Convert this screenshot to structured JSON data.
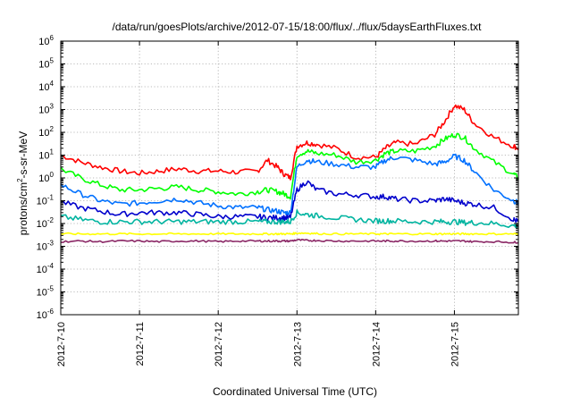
{
  "chart_data": {
    "type": "line",
    "title": "/data/run/goesPlots/archive/2012-07-15/18:00/flux/../flux/5daysEarthFluxes.txt",
    "xlabel": "Coordinated Universal Time (UTC)",
    "ylabel_parts": [
      "protons/cm",
      "2",
      "-s-sr-MeV"
    ],
    "yscale": "log",
    "xlim": [
      "2012-07-10T00:00",
      "2012-07-15T19:30"
    ],
    "ylim": [
      1e-06,
      1000000
    ],
    "grid": true,
    "x_ticks": [
      "2012-7-10",
      "2012-7-11",
      "2012-7-12",
      "2012-7-13",
      "2012-7-14",
      "2012-7-15"
    ],
    "y_ticks": [
      {
        "base": "10",
        "exp": "-6"
      },
      {
        "base": "10",
        "exp": "-5"
      },
      {
        "base": "10",
        "exp": "-4"
      },
      {
        "base": "10",
        "exp": "-3"
      },
      {
        "base": "10",
        "exp": "-2"
      },
      {
        "base": "10",
        "exp": "-1"
      },
      {
        "base": "10",
        "exp": "0"
      },
      {
        "base": "10",
        "exp": "1"
      },
      {
        "base": "10",
        "exp": "2"
      },
      {
        "base": "10",
        "exp": "3"
      },
      {
        "base": "10",
        "exp": "4"
      },
      {
        "base": "10",
        "exp": "5"
      },
      {
        "base": "10",
        "exp": "6"
      }
    ],
    "x": [
      "2012-07-10T00:00",
      "2012-07-10T06:00",
      "2012-07-10T12:00",
      "2012-07-10T18:00",
      "2012-07-11T00:00",
      "2012-07-11T06:00",
      "2012-07-11T12:00",
      "2012-07-11T18:00",
      "2012-07-12T00:00",
      "2012-07-12T06:00",
      "2012-07-12T12:00",
      "2012-07-12T15:00",
      "2012-07-12T18:00",
      "2012-07-12T20:00",
      "2012-07-12T22:00",
      "2012-07-13T00:00",
      "2012-07-13T03:00",
      "2012-07-13T06:00",
      "2012-07-13T12:00",
      "2012-07-13T18:00",
      "2012-07-14T00:00",
      "2012-07-14T03:00",
      "2012-07-14T06:00",
      "2012-07-14T12:00",
      "2012-07-14T18:00",
      "2012-07-14T21:00",
      "2012-07-15T00:00",
      "2012-07-15T03:00",
      "2012-07-15T06:00",
      "2012-07-15T12:00",
      "2012-07-15T18:00",
      "2012-07-15T19:30"
    ],
    "series": [
      {
        "color": "#ff0000",
        "values": [
          10,
          5,
          3,
          2,
          1.6,
          2,
          2.5,
          2,
          2,
          1.8,
          2,
          6,
          3,
          1.5,
          1,
          25,
          35,
          30,
          20,
          8,
          8,
          20,
          35,
          30,
          80,
          300,
          1500,
          1000,
          250,
          60,
          25,
          20
        ]
      },
      {
        "color": "#00ff00",
        "values": [
          2.5,
          1,
          0.5,
          0.3,
          0.3,
          0.35,
          0.4,
          0.3,
          0.25,
          0.2,
          0.25,
          0.3,
          0.25,
          0.2,
          0.15,
          10,
          15,
          12,
          10,
          5,
          6,
          12,
          15,
          15,
          25,
          50,
          80,
          60,
          20,
          5,
          1.5,
          1
        ]
      },
      {
        "color": "#0070ff",
        "values": [
          0.5,
          0.2,
          0.1,
          0.07,
          0.08,
          0.1,
          0.12,
          0.08,
          0.06,
          0.05,
          0.05,
          0.04,
          0.035,
          0.03,
          0.03,
          3,
          6,
          5,
          4,
          3,
          3,
          6,
          8,
          6,
          4,
          5,
          9,
          6,
          2,
          0.3,
          0.1,
          0.08
        ]
      },
      {
        "color": "#0000cc",
        "values": [
          0.09,
          0.05,
          0.035,
          0.025,
          0.03,
          0.03,
          0.03,
          0.025,
          0.02,
          0.02,
          0.02,
          0.018,
          0.018,
          0.018,
          0.018,
          0.3,
          0.7,
          0.3,
          0.2,
          0.18,
          0.15,
          0.15,
          0.12,
          0.1,
          0.1,
          0.12,
          0.1,
          0.08,
          0.07,
          0.05,
          0.015,
          0.012
        ]
      },
      {
        "color": "#00b4a0",
        "values": [
          0.02,
          0.015,
          0.012,
          0.012,
          0.012,
          0.012,
          0.012,
          0.012,
          0.012,
          0.012,
          0.012,
          0.012,
          0.012,
          0.012,
          0.012,
          0.03,
          0.025,
          0.022,
          0.018,
          0.015,
          0.013,
          0.013,
          0.013,
          0.012,
          0.012,
          0.012,
          0.012,
          0.011,
          0.011,
          0.01,
          0.008,
          0.008
        ]
      },
      {
        "color": "#ffff00",
        "values": [
          0.0035,
          0.0035,
          0.0035,
          0.0035,
          0.0035,
          0.0035,
          0.0035,
          0.0035,
          0.0035,
          0.0035,
          0.0035,
          0.0035,
          0.0035,
          0.0035,
          0.0035,
          0.0038,
          0.0038,
          0.0036,
          0.0035,
          0.0035,
          0.0035,
          0.0035,
          0.0035,
          0.0035,
          0.0035,
          0.0035,
          0.0035,
          0.0035,
          0.0035,
          0.0035,
          0.0035,
          0.0035
        ]
      },
      {
        "color": "#8b2866",
        "values": [
          0.0016,
          0.0017,
          0.0016,
          0.0017,
          0.0017,
          0.0016,
          0.0017,
          0.0017,
          0.0016,
          0.0017,
          0.0017,
          0.0017,
          0.0017,
          0.0017,
          0.0017,
          0.0019,
          0.0018,
          0.0018,
          0.0017,
          0.0017,
          0.0017,
          0.0017,
          0.0017,
          0.0017,
          0.0017,
          0.0017,
          0.0017,
          0.0017,
          0.0016,
          0.0016,
          0.0015,
          0.0015
        ]
      }
    ]
  }
}
